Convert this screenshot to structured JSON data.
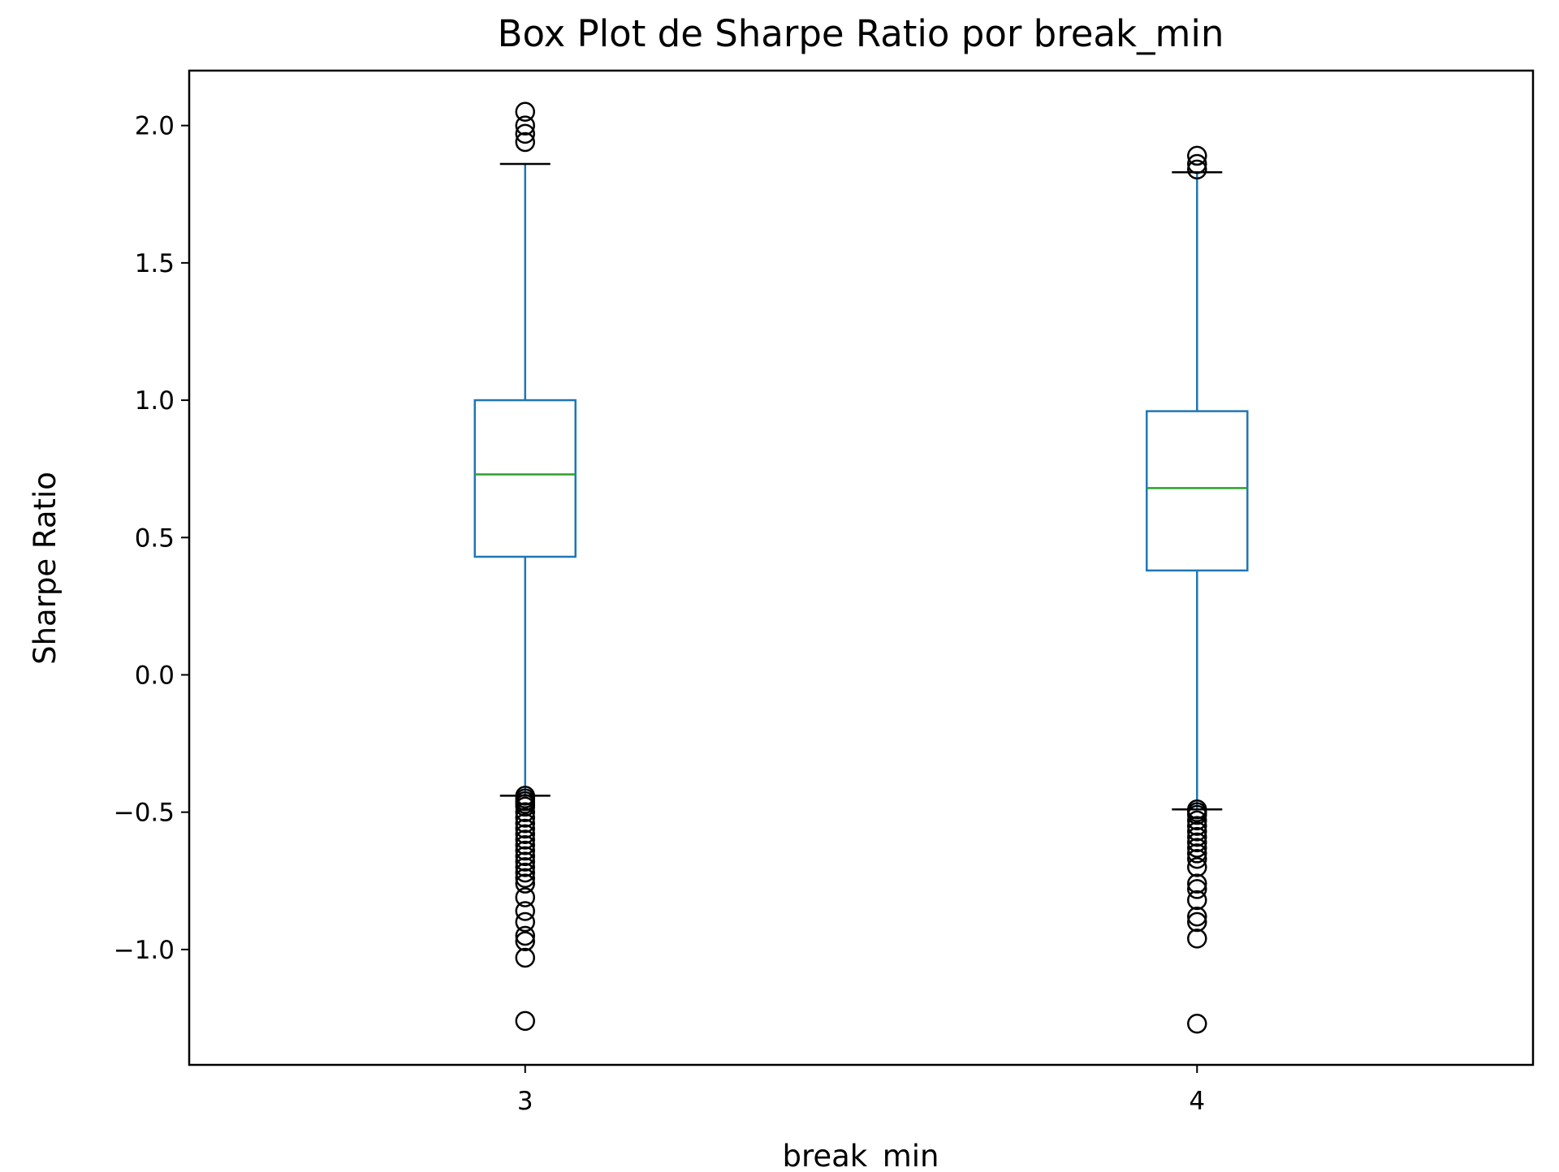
{
  "chart_data": {
    "type": "box",
    "title": "Box Plot de Sharpe Ratio por break_min",
    "xlabel": "break_min",
    "ylabel": "Sharpe Ratio",
    "ylim": [
      -1.42,
      2.2
    ],
    "yticks": [
      -1.0,
      -0.5,
      0.0,
      0.5,
      1.0,
      1.5,
      2.0
    ],
    "ytick_labels": [
      "−1.0",
      "−0.5",
      "0.0",
      "0.5",
      "1.0",
      "1.5",
      "2.0"
    ],
    "categories": [
      "3",
      "4"
    ],
    "grid": false,
    "colors": {
      "box": "#1f77b4",
      "whisker": "#1f77b4",
      "median": "#2ca02c",
      "cap": "#000000",
      "flier": "#000000"
    },
    "boxes": [
      {
        "category": "3",
        "q1": 0.43,
        "median": 0.73,
        "q3": 1.0,
        "whisker_low": -0.44,
        "whisker_high": 1.86,
        "outliers": [
          2.05,
          2.0,
          1.97,
          1.94,
          -0.44,
          -0.45,
          -0.46,
          -0.47,
          -0.48,
          -0.5,
          -0.52,
          -0.54,
          -0.56,
          -0.58,
          -0.6,
          -0.62,
          -0.64,
          -0.66,
          -0.68,
          -0.7,
          -0.72,
          -0.74,
          -0.76,
          -0.81,
          -0.86,
          -0.9,
          -0.95,
          -0.97,
          -1.03,
          -1.26
        ]
      },
      {
        "category": "4",
        "q1": 0.38,
        "median": 0.68,
        "q3": 0.96,
        "whisker_low": -0.49,
        "whisker_high": 1.83,
        "outliers": [
          1.89,
          1.86,
          1.84,
          -0.49,
          -0.5,
          -0.51,
          -0.53,
          -0.55,
          -0.57,
          -0.59,
          -0.61,
          -0.63,
          -0.65,
          -0.67,
          -0.7,
          -0.76,
          -0.78,
          -0.82,
          -0.88,
          -0.9,
          -0.96,
          -1.27
        ]
      }
    ]
  }
}
